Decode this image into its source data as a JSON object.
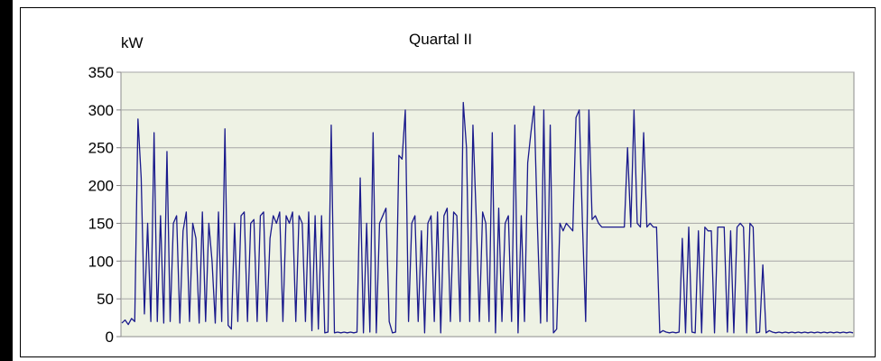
{
  "chart_data": {
    "type": "line",
    "title": "Quartal II",
    "ylabel": "kW",
    "xlabel": "",
    "ylim": [
      0,
      350
    ],
    "yticks": [
      0,
      50,
      100,
      150,
      200,
      250,
      300,
      350
    ],
    "grid": true,
    "plot_background": "#eef2e4",
    "series_color": "#1a1a8c",
    "series": [
      {
        "values": [
          18,
          22,
          16,
          24,
          20,
          288,
          210,
          30,
          150,
          20,
          270,
          20,
          160,
          18,
          245,
          20,
          150,
          160,
          18,
          140,
          165,
          20,
          150,
          130,
          18,
          165,
          20,
          150,
          100,
          18,
          165,
          20,
          275,
          15,
          10,
          150,
          20,
          160,
          165,
          20,
          150,
          155,
          20,
          160,
          165,
          20,
          130,
          160,
          150,
          165,
          20,
          160,
          150,
          165,
          20,
          160,
          150,
          20,
          165,
          8,
          160,
          10,
          160,
          5,
          6,
          280,
          5,
          6,
          5,
          6,
          5,
          6,
          5,
          6,
          210,
          5,
          150,
          6,
          270,
          5,
          150,
          160,
          170,
          20,
          5,
          6,
          240,
          235,
          300,
          20,
          150,
          160,
          20,
          140,
          5,
          150,
          160,
          20,
          165,
          5,
          160,
          170,
          20,
          165,
          160,
          20,
          310,
          250,
          20,
          280,
          160,
          20,
          165,
          150,
          20,
          270,
          5,
          170,
          20,
          150,
          160,
          20,
          280,
          5,
          160,
          20,
          230,
          270,
          305,
          150,
          18,
          300,
          20,
          280,
          5,
          10,
          150,
          140,
          150,
          145,
          140,
          290,
          300,
          150,
          20,
          300,
          155,
          160,
          150,
          145,
          145,
          145,
          145,
          145,
          145,
          145,
          145,
          250,
          145,
          300,
          150,
          145,
          270,
          145,
          150,
          145,
          145,
          5,
          8,
          6,
          5,
          6,
          5,
          6,
          130,
          5,
          145,
          6,
          5,
          140,
          5,
          145,
          140,
          140,
          5,
          145,
          145,
          145,
          6,
          140,
          5,
          145,
          150,
          145,
          5,
          150,
          145,
          5,
          6,
          95,
          5,
          8,
          6,
          5,
          6,
          5,
          6,
          5,
          6,
          5,
          6,
          5,
          6,
          5,
          6,
          5,
          6,
          5,
          6,
          5,
          6,
          5,
          6,
          5,
          6,
          5,
          6,
          5
        ]
      }
    ]
  }
}
